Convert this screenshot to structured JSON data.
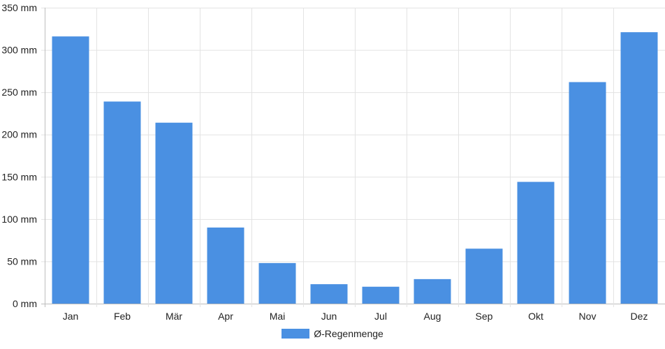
{
  "chart_data": {
    "type": "bar",
    "categories": [
      "Jan",
      "Feb",
      "Mär",
      "Apr",
      "Mai",
      "Jun",
      "Jul",
      "Aug",
      "Sep",
      "Okt",
      "Nov",
      "Dez"
    ],
    "series": [
      {
        "name": "Ø-Regenmenge",
        "values": [
          316,
          239,
          214,
          90,
          48,
          23,
          20,
          29,
          65,
          144,
          262,
          321
        ],
        "color": "#4a90e2"
      }
    ],
    "y_ticks": [
      "0 mm",
      "50 mm",
      "100 mm",
      "150 mm",
      "200 mm",
      "250 mm",
      "300 mm",
      "350 mm"
    ],
    "ylim": [
      0,
      350
    ],
    "grid": true,
    "legend_position": "bottom-center"
  }
}
